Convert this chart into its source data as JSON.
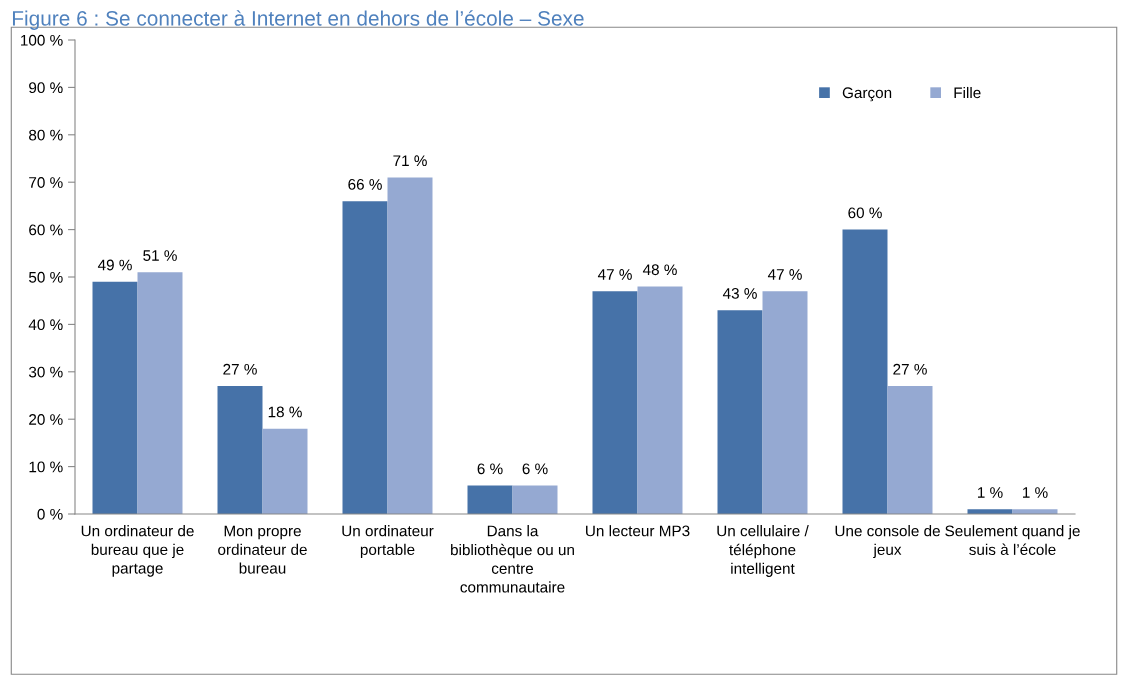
{
  "chart_data": {
    "type": "bar",
    "title": "Figure 6 : Se connecter à Internet en dehors de l’école – Sexe",
    "categories": [
      "Un ordinateur de bureau que je partage",
      "Mon propre ordinateur de bureau",
      "Un ordinateur portable",
      "Dans la bibliothèque ou un centre communautaire",
      "Un lecteur MP3",
      "Un cellulaire / téléphone intelligent",
      "Une console de jeux",
      "Seulement quand je suis à l’école"
    ],
    "series": [
      {
        "name": "Garçon",
        "color": "#4672a8",
        "values": [
          49,
          27,
          66,
          6,
          47,
          43,
          60,
          1
        ],
        "value_labels": [
          "49 %",
          "27 %",
          "66 %",
          "6 %",
          "47 %",
          "43 %",
          "60 %",
          "1 %"
        ]
      },
      {
        "name": "Fille",
        "color": "#95a9d2",
        "values": [
          51,
          18,
          71,
          6,
          48,
          47,
          27,
          1
        ],
        "value_labels": [
          "51 %",
          "18 %",
          "71 %",
          "6 %",
          "48 %",
          "47 %",
          "27 %",
          "1 %"
        ]
      }
    ],
    "ylim": [
      0,
      100
    ],
    "yticks": [
      {
        "value": 0,
        "label": "0 %"
      },
      {
        "value": 10,
        "label": "10 %"
      },
      {
        "value": 20,
        "label": "20 %"
      },
      {
        "value": 30,
        "label": "30 %"
      },
      {
        "value": 40,
        "label": "40 %"
      },
      {
        "value": 50,
        "label": "50 %"
      },
      {
        "value": 60,
        "label": "60 %"
      },
      {
        "value": 70,
        "label": "70 %"
      },
      {
        "value": 80,
        "label": "80 %"
      },
      {
        "value": 90,
        "label": "90 %"
      },
      {
        "value": 100,
        "label": "100 %"
      }
    ],
    "grid": false,
    "legend": "top right"
  }
}
